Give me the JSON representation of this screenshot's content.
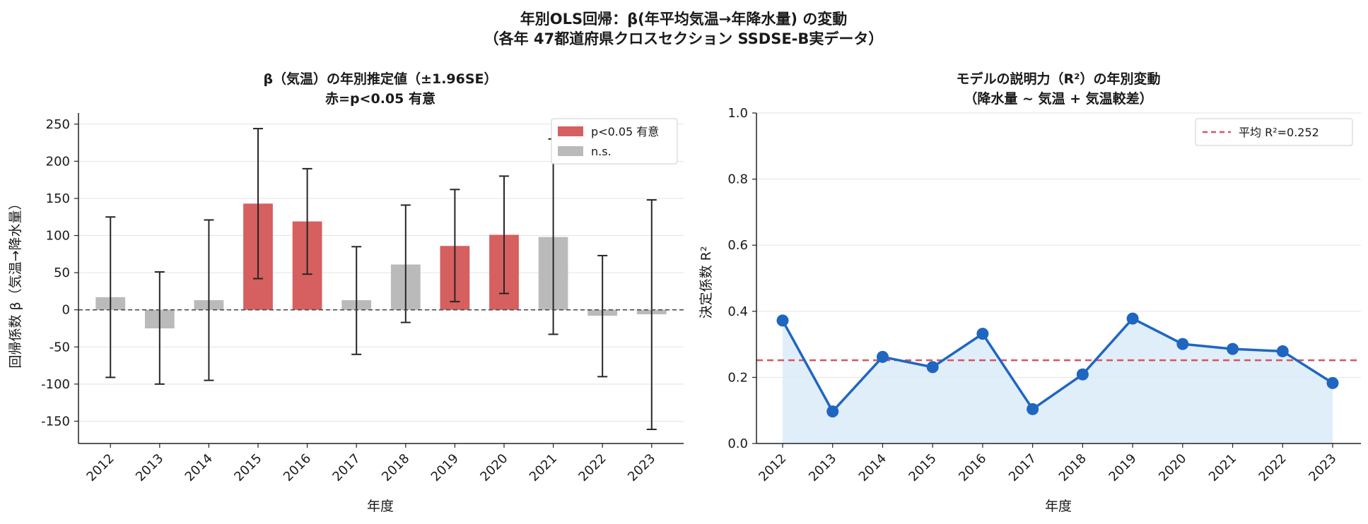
{
  "figure": {
    "title_line1": "年別OLS回帰：β(年平均気温→年降水量) の変動",
    "title_line2": "（各年 47都道府県クロスセクション SSDSE-B実データ）"
  },
  "chart_data": [
    {
      "type": "bar",
      "title": "β（気温）の年別推定値（±1.96SE）",
      "subtitle": "赤=p<0.05 有意",
      "xlabel": "年度",
      "ylabel": "回帰係数 β（気温→降水量）",
      "categories": [
        "2012",
        "2013",
        "2014",
        "2015",
        "2016",
        "2017",
        "2018",
        "2019",
        "2020",
        "2021",
        "2022",
        "2023"
      ],
      "values": [
        17,
        -25,
        13,
        143,
        119,
        13,
        61,
        86,
        101,
        98,
        -8,
        -6
      ],
      "ci_low": [
        -91,
        -100,
        -95,
        42,
        48,
        -60,
        -17,
        11,
        22,
        -33,
        -90,
        -161
      ],
      "ci_high": [
        125,
        51,
        121,
        244,
        190,
        85,
        141,
        162,
        180,
        230,
        73,
        148
      ],
      "significant": [
        false,
        false,
        false,
        true,
        true,
        false,
        false,
        true,
        true,
        false,
        false,
        false
      ],
      "ylim": [
        -180,
        265
      ],
      "yticks": [
        -150,
        -100,
        -50,
        0,
        50,
        100,
        150,
        200,
        250
      ],
      "ytick_labels": [
        "-150",
        "-100",
        "-50",
        "0",
        "50",
        "100",
        "150",
        "200",
        "250"
      ],
      "grid": true,
      "legend_position": "top-right",
      "legend": [
        {
          "label": "p<0.05 有意",
          "color": "#d65f5f"
        },
        {
          "label": "n.s.",
          "color": "#bababa"
        }
      ],
      "colors": {
        "significant": "#d65f5f",
        "ns": "#bababa",
        "errorbar": "#262626",
        "zero_line": "#444444"
      }
    },
    {
      "type": "line",
      "title": "モデルの説明力（R²）の年別変動",
      "subtitle": "（降水量 ~ 気温 + 気温較差）",
      "xlabel": "年度",
      "ylabel": "決定係数 R²",
      "categories": [
        "2012",
        "2013",
        "2014",
        "2015",
        "2016",
        "2017",
        "2018",
        "2019",
        "2020",
        "2021",
        "2022",
        "2023"
      ],
      "values": [
        0.372,
        0.097,
        0.262,
        0.231,
        0.332,
        0.104,
        0.209,
        0.378,
        0.301,
        0.286,
        0.279,
        0.183
      ],
      "mean": 0.252,
      "ylim": [
        0.0,
        1.0
      ],
      "yticks": [
        0.0,
        0.2,
        0.4,
        0.6,
        0.8,
        1.0
      ],
      "ytick_labels": [
        "0.0",
        "0.2",
        "0.4",
        "0.6",
        "0.8",
        "1.0"
      ],
      "grid": true,
      "legend_position": "top-right",
      "legend": [
        {
          "label": "平均 R²=0.252",
          "color": "#d9545c"
        }
      ],
      "colors": {
        "line": "#1f66c1",
        "fill": "#d6e8f8",
        "mean_line": "#d9545c"
      }
    }
  ]
}
